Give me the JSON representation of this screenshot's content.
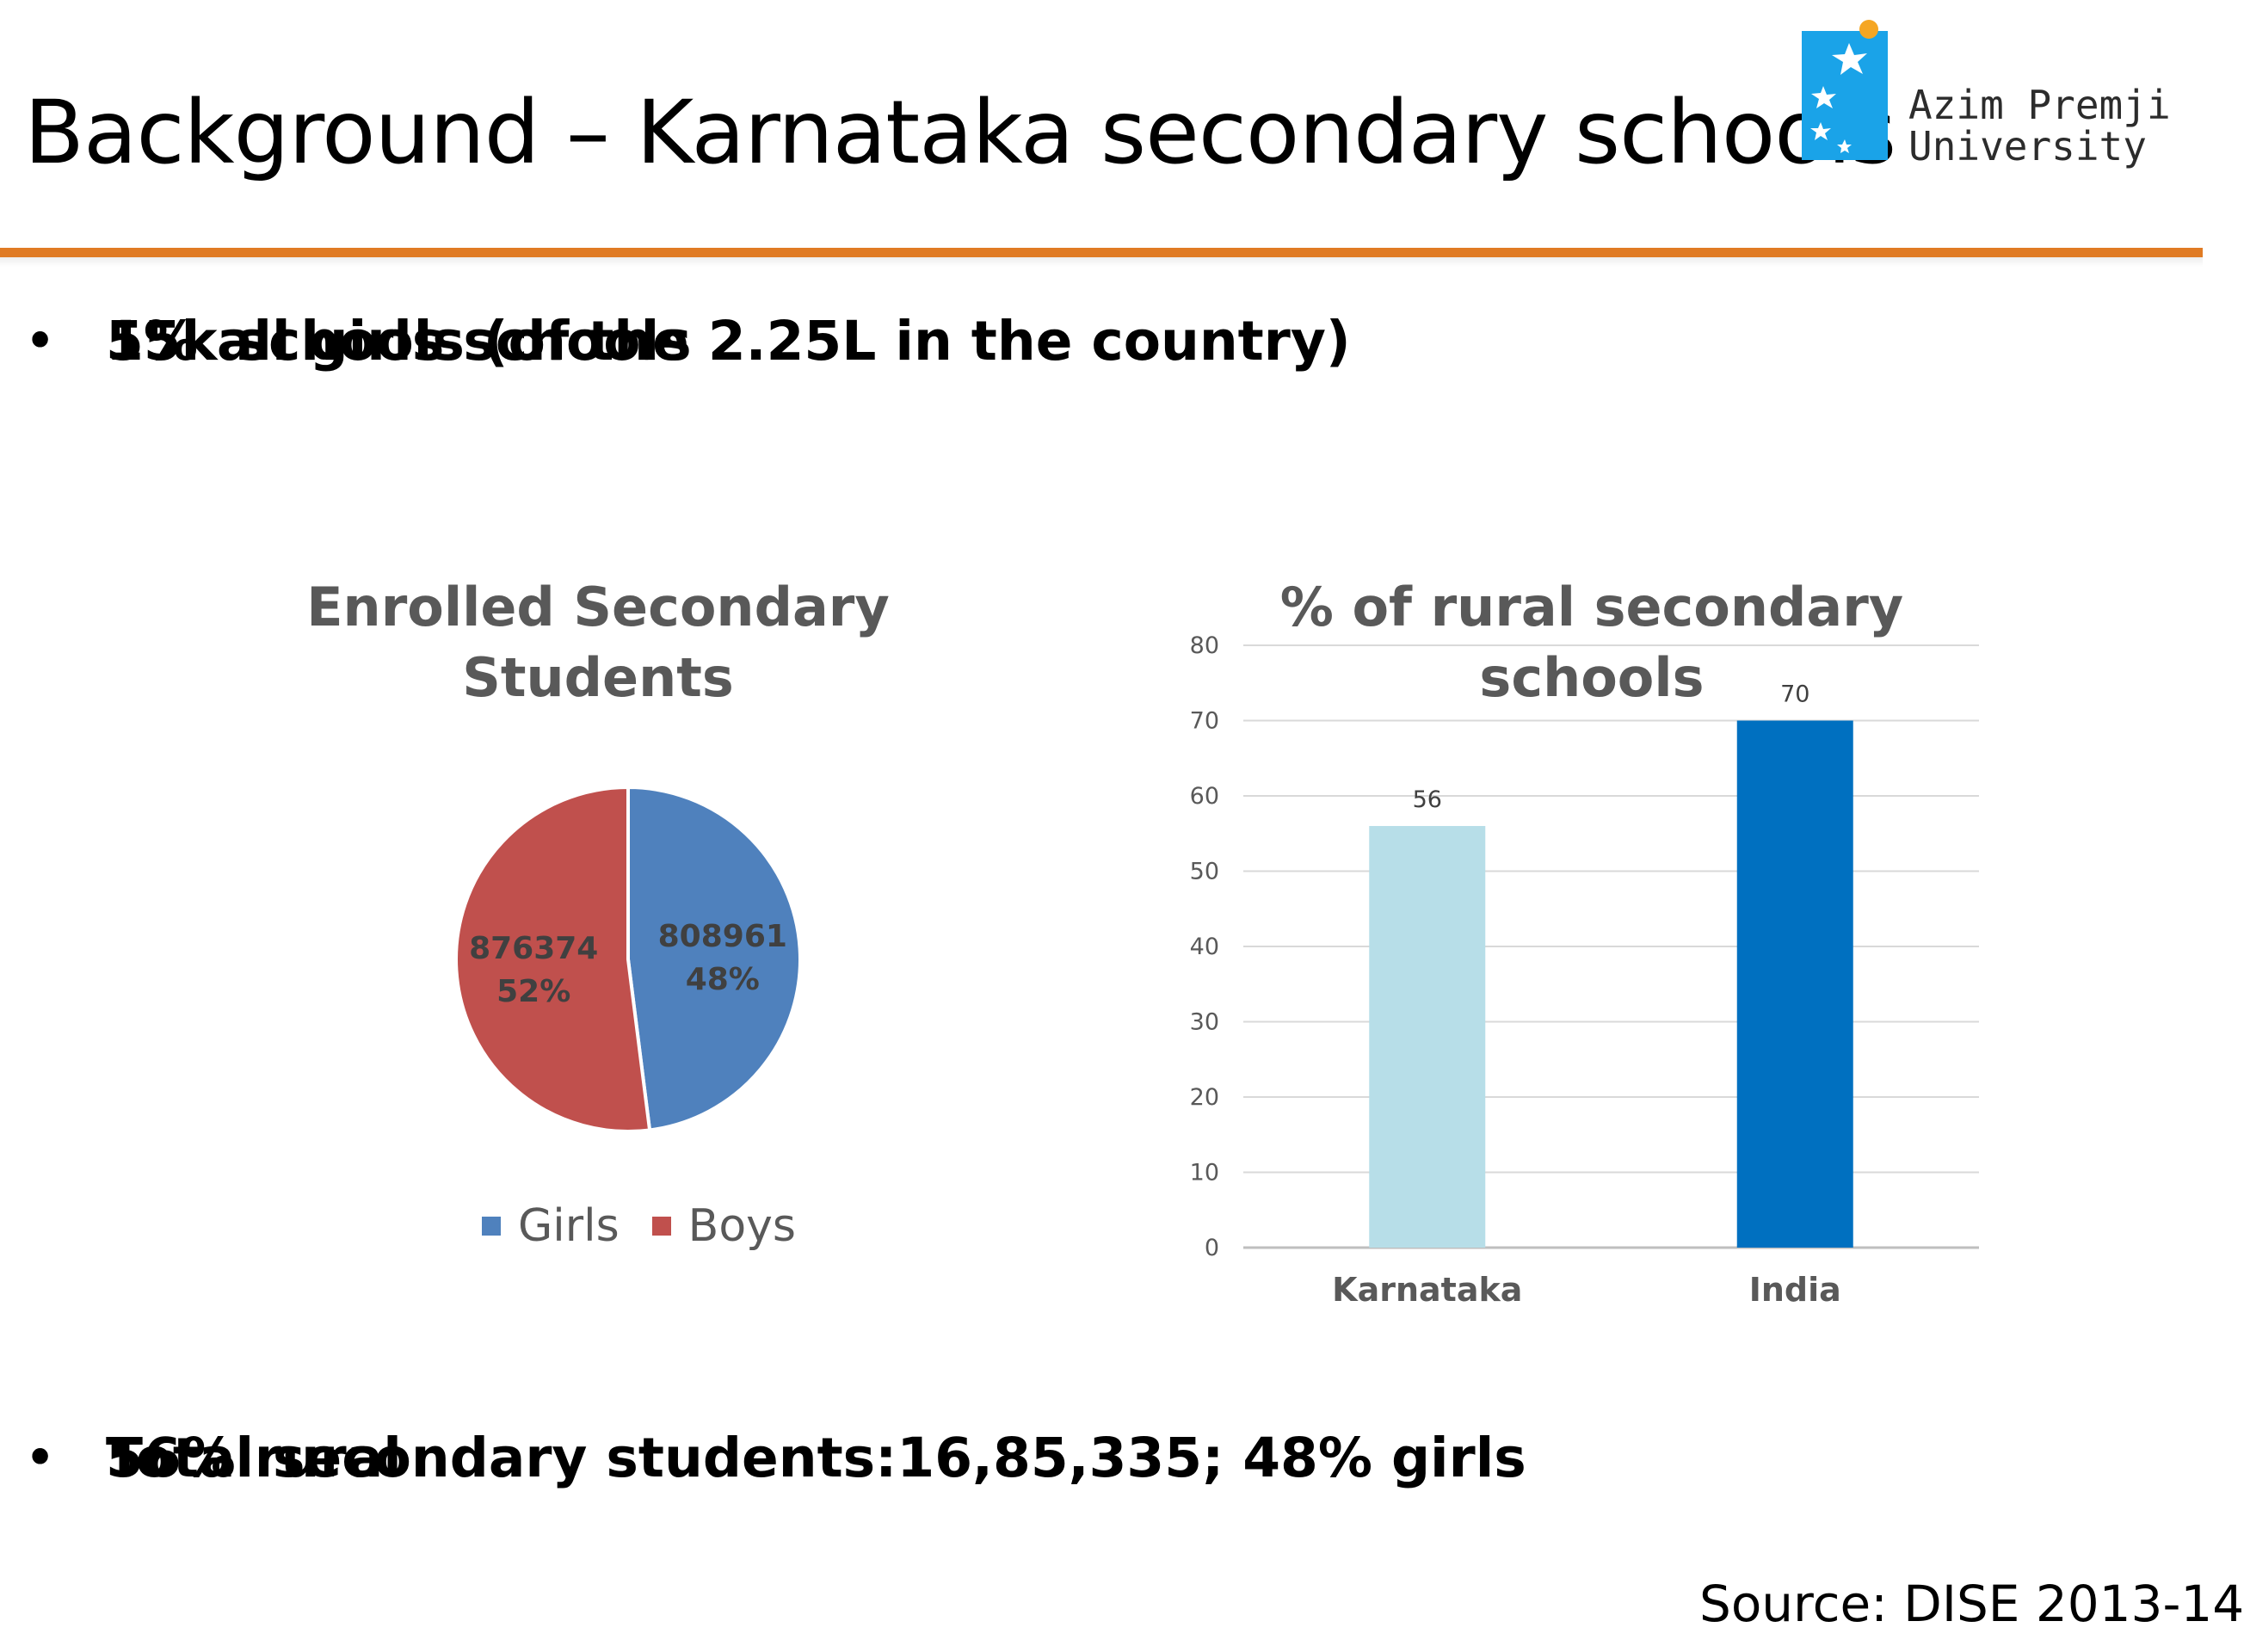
{
  "slide": {
    "title": "Background – Karnataka secondary schools",
    "logo": {
      "line1": "Azim Premji",
      "line2": "University",
      "icon": "flower-star-logo-icon",
      "brand_color": "#1aa3e8",
      "dot_color": "#f5a623"
    },
    "bullets_top": [
      {
        "bullet": "•",
        "text": "15k schools (of the 2.25L in the country)"
      },
      {
        "bullet": "•",
        "text": "5% all girls schools"
      }
    ],
    "bullets_bottom": [
      {
        "bullet": "•",
        "text": "Total secondary students:16,85,335; 48% girls"
      },
      {
        "bullet": "•",
        "text": "56% rural"
      }
    ],
    "source": "Source: DISE 2013-14",
    "accent_color": "#e07b24"
  },
  "chart_data": [
    {
      "type": "pie",
      "title": "Enrolled Secondary Students",
      "labels": [
        "Girls",
        "Boys"
      ],
      "values": [
        808961,
        876374
      ],
      "percent_labels": [
        "48%",
        "52%"
      ],
      "colors": [
        "#4f81bd",
        "#c0504d"
      ],
      "legend_position": "bottom"
    },
    {
      "type": "bar",
      "title": "% of rural secondary schools",
      "categories": [
        "Karnataka",
        "India"
      ],
      "values": [
        56,
        70
      ],
      "colors": [
        "#b7dee8",
        "#0070c0"
      ],
      "ylim": [
        0,
        80
      ],
      "yticks": [
        0,
        10,
        20,
        30,
        40,
        50,
        60,
        70,
        80
      ],
      "xlabel": "",
      "ylabel": "",
      "grid": true,
      "data_labels": true
    }
  ]
}
